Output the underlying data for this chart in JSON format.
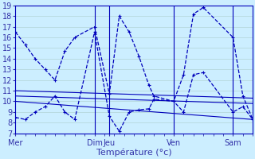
{
  "xlabel": "Température (°c)",
  "background_color": "#cceeff",
  "grid_color": "#aacccc",
  "line_color": "#0000bb",
  "ylim": [
    7,
    19
  ],
  "yticks": [
    7,
    8,
    9,
    10,
    11,
    12,
    13,
    14,
    15,
    16,
    17,
    18,
    19
  ],
  "xlim": [
    0,
    24
  ],
  "day_labels": [
    "Mer",
    "Dim",
    "Jeu",
    "Ven",
    "Sam"
  ],
  "day_positions": [
    0,
    8,
    9.5,
    16,
    22
  ],
  "vline_positions": [
    8,
    9.5,
    16,
    22
  ],
  "line1_x": [
    0,
    1,
    2,
    3,
    4,
    5,
    6,
    8,
    9.5,
    10.5,
    11.5,
    12.5,
    13.5,
    14,
    16,
    17,
    18,
    19,
    22,
    23,
    24
  ],
  "line1_y": [
    16.5,
    15.3,
    14.0,
    13.0,
    12.0,
    14.7,
    16.0,
    17.0,
    10.7,
    18.0,
    16.5,
    14.2,
    11.5,
    10.5,
    10.0,
    12.5,
    18.2,
    18.8,
    16.0,
    10.5,
    8.3
  ],
  "line2_x": [
    0,
    1,
    2,
    3,
    4,
    5,
    6,
    8,
    9.5,
    10.5,
    11.5,
    12.5,
    13.5,
    14,
    16,
    17,
    18,
    19,
    22,
    23,
    24
  ],
  "line2_y": [
    8.5,
    8.3,
    9.0,
    9.5,
    10.5,
    9.0,
    8.3,
    16.5,
    8.6,
    7.2,
    9.0,
    9.2,
    9.3,
    10.2,
    10.0,
    9.0,
    12.5,
    12.7,
    9.0,
    9.5,
    8.3
  ],
  "line3_x": [
    0,
    24
  ],
  "line3_y": [
    11.0,
    10.3
  ],
  "line4_x": [
    0,
    24
  ],
  "line4_y": [
    10.5,
    9.8
  ],
  "line5_x": [
    0,
    24
  ],
  "line5_y": [
    10.0,
    8.3
  ],
  "fontsize_label": 8,
  "fontsize_tick": 7,
  "tick_color": "#3333aa"
}
